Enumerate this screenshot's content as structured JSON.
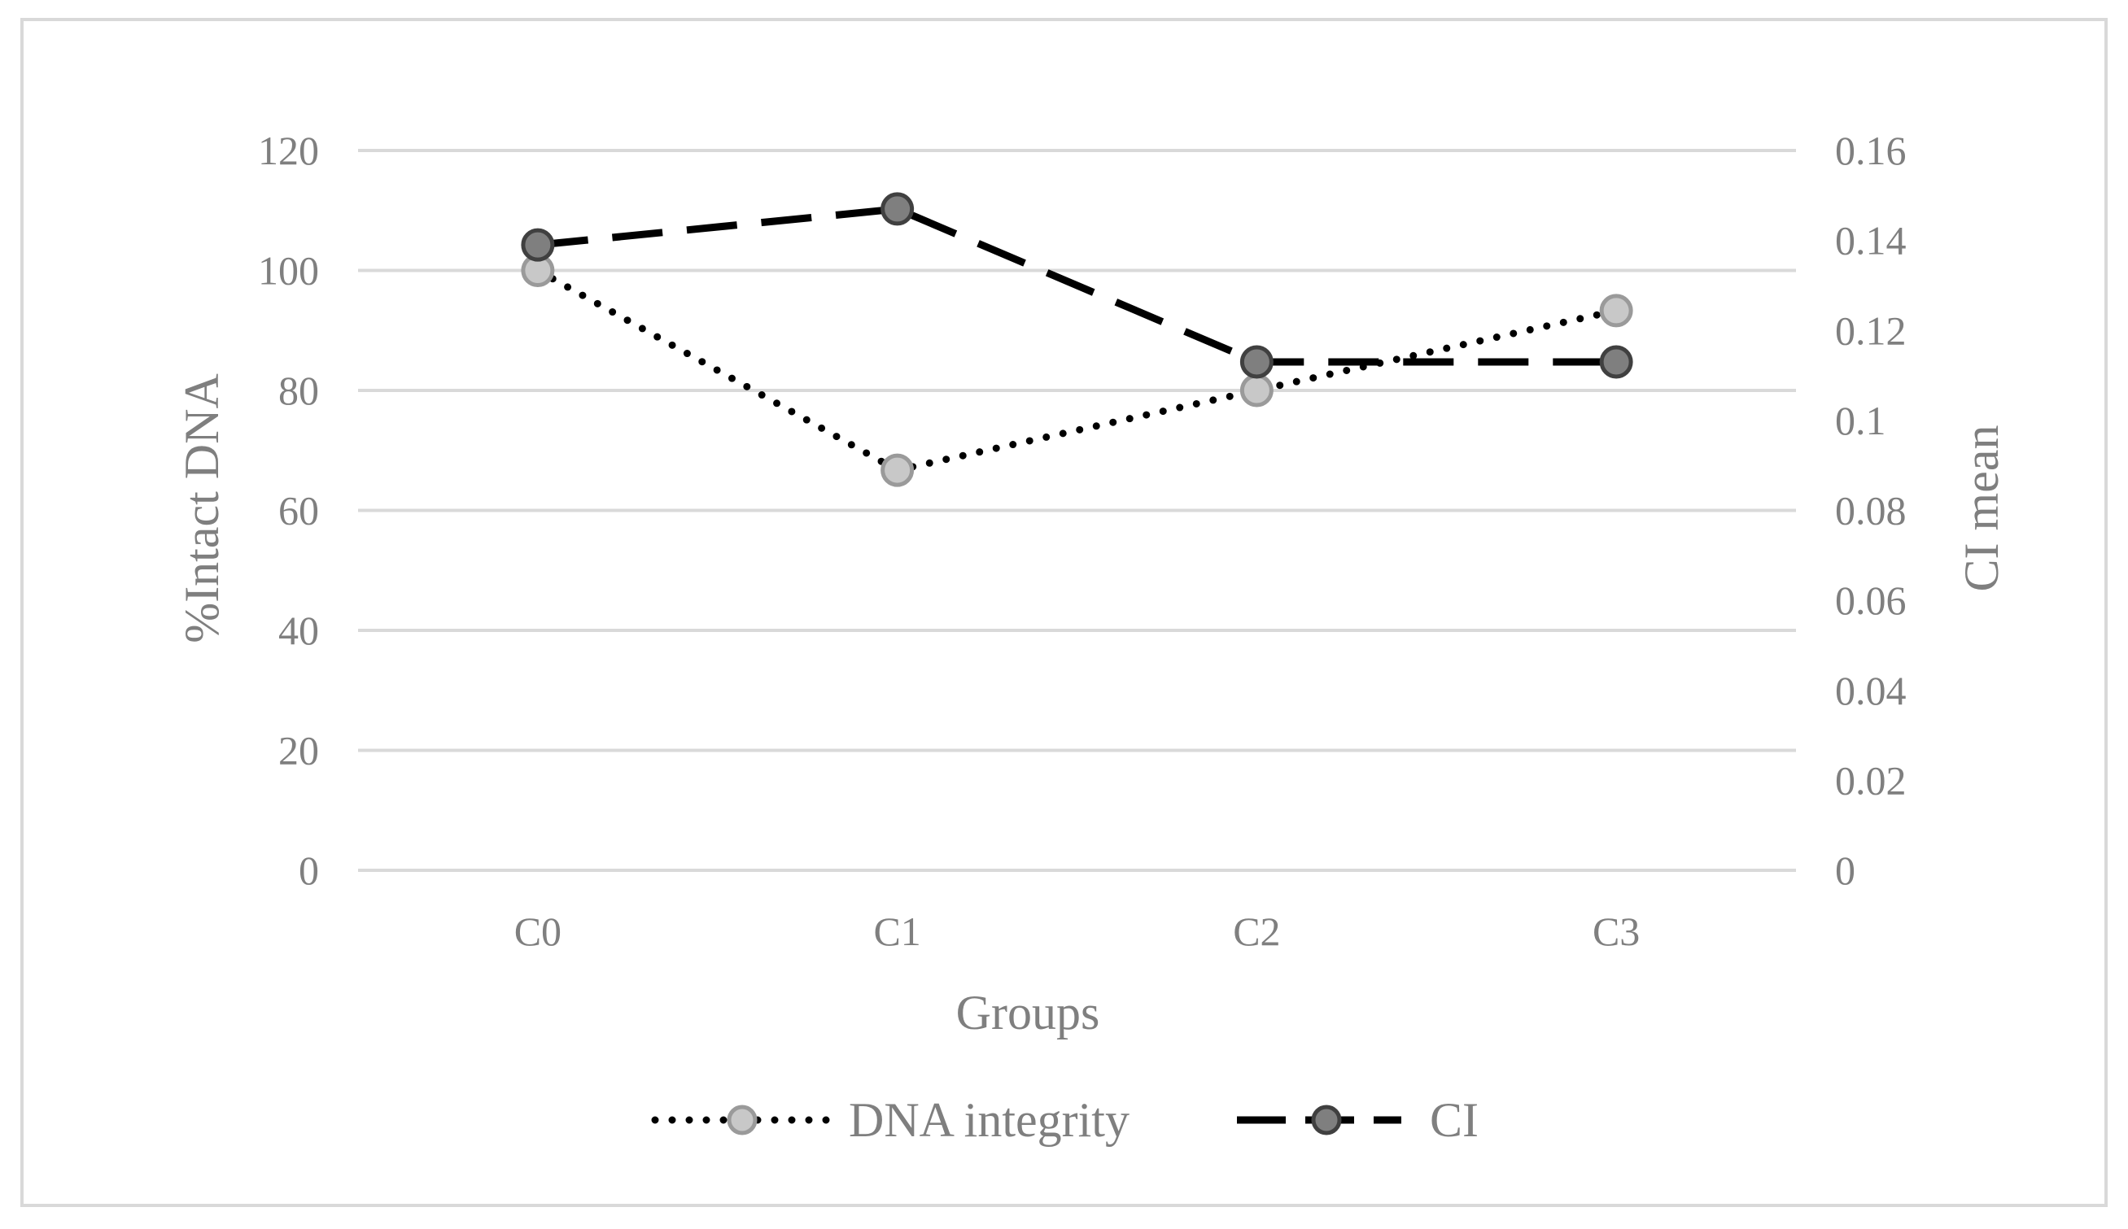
{
  "chart_data": {
    "type": "line",
    "title": "",
    "categories": [
      "C0",
      "C1",
      "C2",
      "C3"
    ],
    "xlabel": "Groups",
    "ylabel": "%Intact DNA",
    "y2label": "CI mean",
    "ylim": [
      0,
      120
    ],
    "yticks": [
      0,
      20,
      40,
      60,
      80,
      100,
      120
    ],
    "y2lim": [
      0,
      0.16
    ],
    "y2ticks": [
      "0",
      "0.02",
      "0.04",
      "0.06",
      "0.08",
      "0.1",
      "0.12",
      "0.14",
      "0.16"
    ],
    "grid": true,
    "legend_position": "bottom",
    "series": [
      {
        "name": "DNA integrity",
        "axis": "left",
        "values": [
          100,
          66.7,
          80,
          93.3
        ],
        "line_style": "dotted",
        "line_color": "#000000",
        "marker_color": "#c8c8c8"
      },
      {
        "name": "CI",
        "axis": "right",
        "values": [
          0.139,
          0.147,
          0.113,
          0.113
        ],
        "line_style": "dashed",
        "line_color": "#000000",
        "marker_color": "#7f7f7f"
      }
    ]
  }
}
